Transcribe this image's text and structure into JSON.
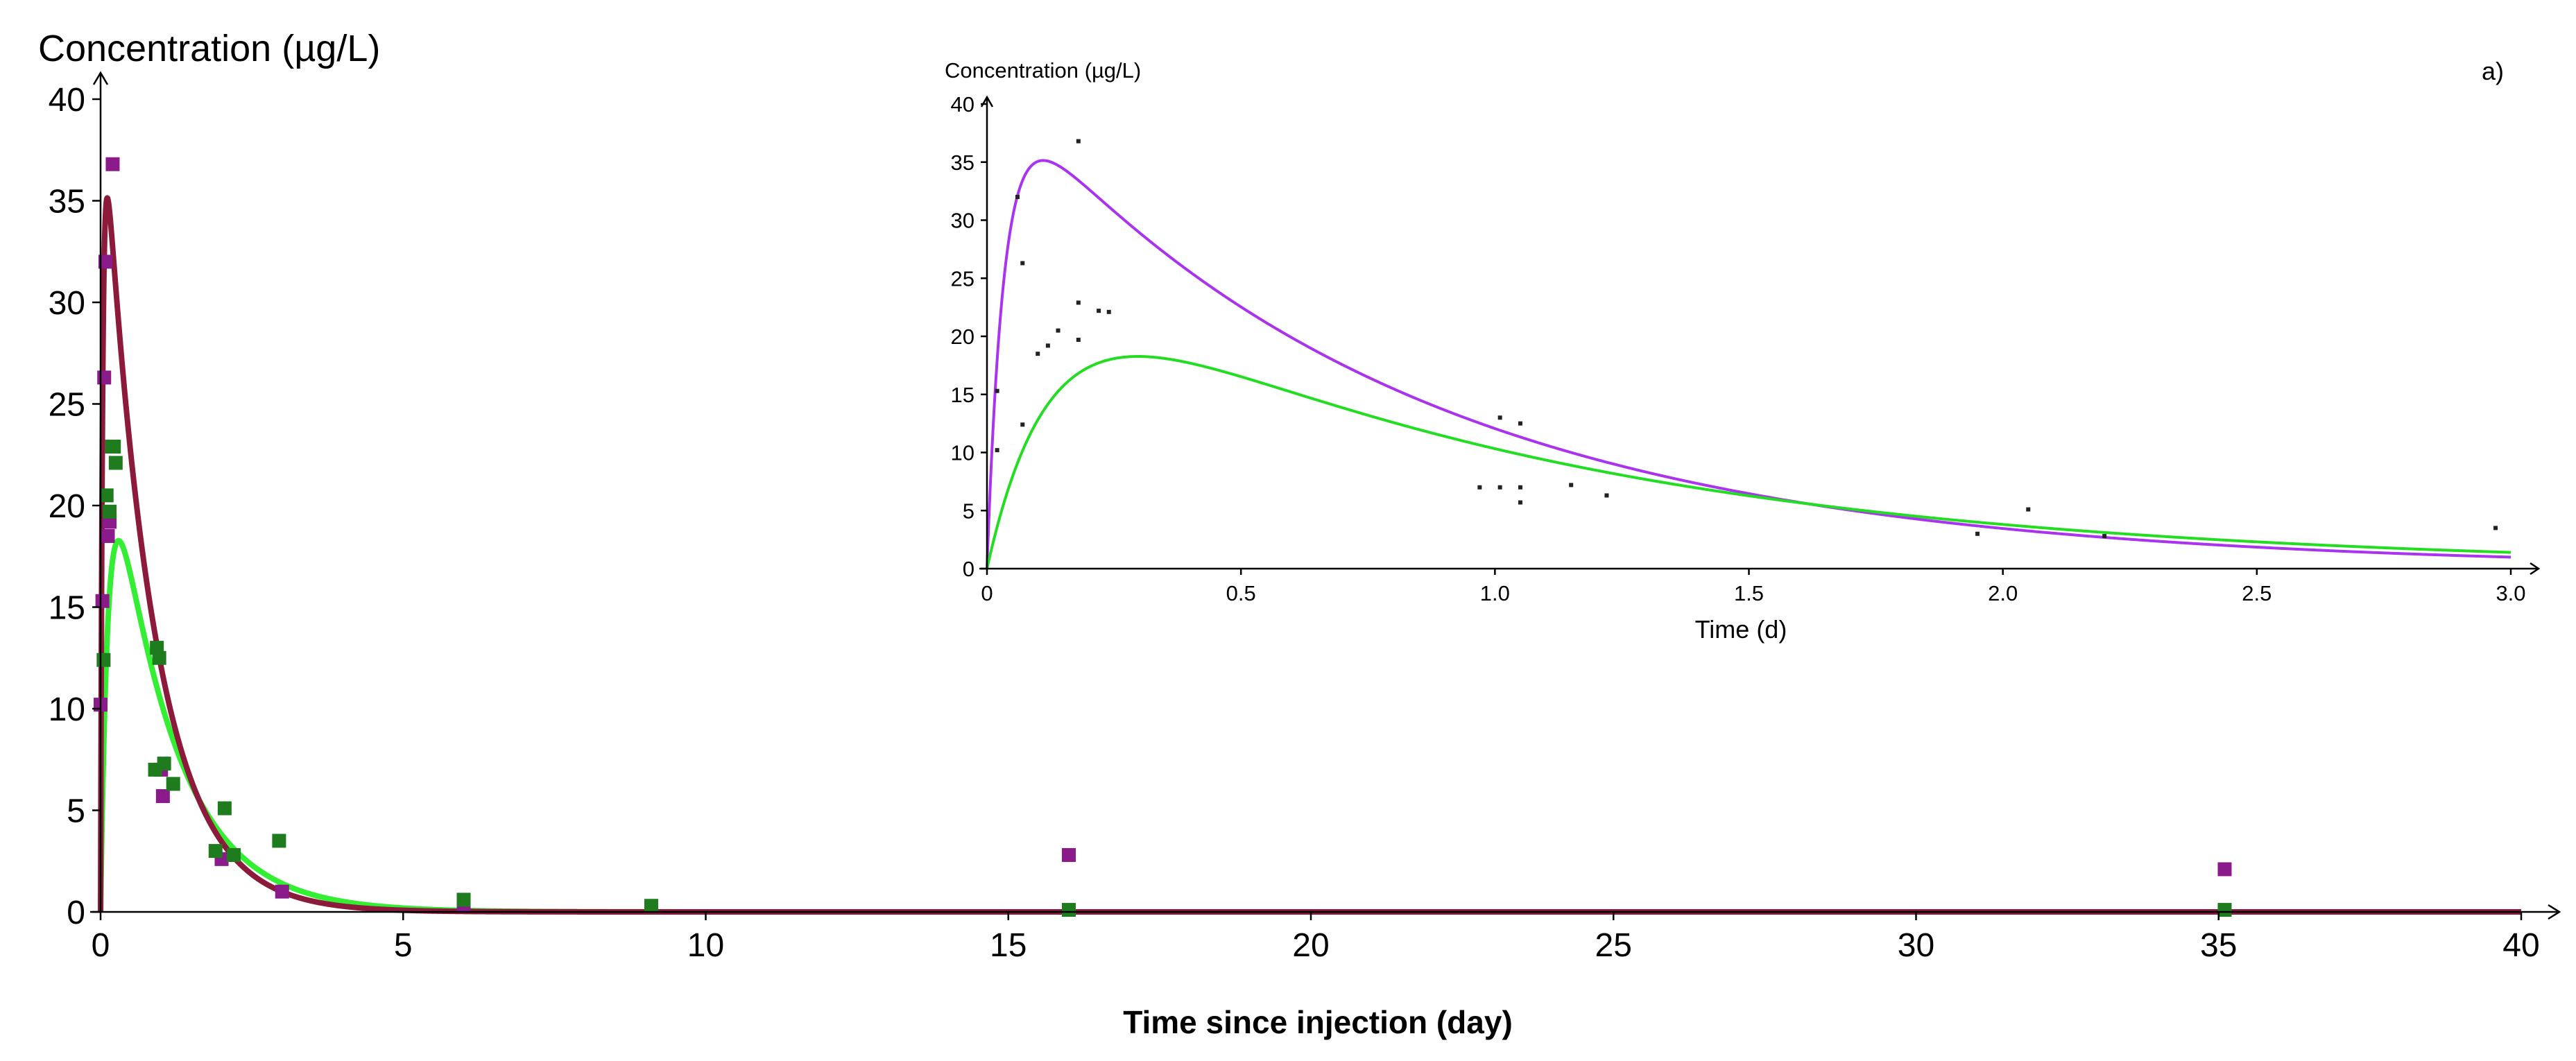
{
  "chart_data": [
    {
      "type": "scatter",
      "role": "main",
      "ylabel": "Concentration (µg/L)",
      "xlabel": "Time since injection (day)",
      "xlim": [
        0,
        40
      ],
      "ylim": [
        0,
        40
      ],
      "x_ticks": [
        0,
        5,
        10,
        15,
        20,
        25,
        30,
        35,
        40
      ],
      "x_tick_labels": [
        "0",
        "5",
        "10",
        "15",
        "20",
        "25",
        "30",
        "35",
        "40"
      ],
      "y_ticks": [
        0,
        5,
        10,
        15,
        20,
        25,
        30,
        35,
        40
      ],
      "y_tick_labels": [
        "0",
        "5",
        "10",
        "15",
        "20",
        "25",
        "30",
        "35",
        "40"
      ],
      "series": [
        {
          "name": "purple",
          "color": "#8b1a8b",
          "points": [
            [
              0.0,
              10.2
            ],
            [
              0.03,
              15.3
            ],
            [
              0.06,
              26.3
            ],
            [
              0.08,
              32.0
            ],
            [
              0.2,
              36.8
            ],
            [
              0.12,
              18.5
            ],
            [
              0.15,
              19.2
            ],
            [
              1.0,
              7.0
            ],
            [
              1.03,
              5.7
            ],
            [
              2.0,
              2.6
            ],
            [
              3.0,
              1.0
            ],
            [
              6.0,
              0.3
            ],
            [
              16.0,
              2.8
            ],
            [
              35.1,
              2.1
            ]
          ]
        },
        {
          "name": "green",
          "color": "#1e7b1e",
          "points": [
            [
              0.05,
              12.4
            ],
            [
              0.1,
              20.5
            ],
            [
              0.15,
              19.7
            ],
            [
              0.19,
              22.9
            ],
            [
              0.22,
              22.9
            ],
            [
              0.25,
              22.1
            ],
            [
              0.9,
              7.0
            ],
            [
              0.93,
              13.0
            ],
            [
              0.97,
              12.5
            ],
            [
              1.05,
              7.3
            ],
            [
              1.2,
              6.3
            ],
            [
              1.9,
              3.0
            ],
            [
              2.05,
              5.1
            ],
            [
              2.2,
              2.8
            ],
            [
              2.95,
              3.5
            ],
            [
              6.0,
              0.6
            ],
            [
              9.1,
              0.3
            ],
            [
              16.0,
              0.1
            ],
            [
              35.1,
              0.1
            ]
          ]
        }
      ],
      "curves": [
        {
          "name": "purple-fit",
          "color": "#8b1a3b",
          "ka": 30,
          "ke": 1.25,
          "A": 42.1
        },
        {
          "name": "green-fit",
          "color": "#33ee33",
          "ka": 8,
          "ke": 1.0,
          "A": 28.1
        }
      ]
    },
    {
      "type": "scatter",
      "role": "inset",
      "panel_label": "a)",
      "ylabel": "Concentration (µg/L)",
      "xlabel": "Time (d)",
      "xlim": [
        0,
        3
      ],
      "ylim": [
        0,
        40
      ],
      "x_ticks": [
        0,
        0.5,
        1.0,
        1.5,
        2.0,
        2.5,
        3.0
      ],
      "x_tick_labels": [
        "0",
        "0.5",
        "1.0",
        "1.5",
        "2.0",
        "2.5",
        "3.0"
      ],
      "y_ticks": [
        0,
        5,
        10,
        15,
        20,
        25,
        30,
        35,
        40
      ],
      "y_tick_labels": [
        "0",
        "5",
        "10",
        "15",
        "20",
        "25",
        "30",
        "35",
        "40"
      ],
      "points": [
        [
          0.02,
          15.3
        ],
        [
          0.02,
          10.2
        ],
        [
          0.06,
          32.0
        ],
        [
          0.07,
          26.3
        ],
        [
          0.07,
          12.4
        ],
        [
          0.18,
          36.8
        ],
        [
          0.1,
          18.5
        ],
        [
          0.12,
          19.2
        ],
        [
          0.14,
          20.5
        ],
        [
          0.18,
          22.9
        ],
        [
          0.18,
          19.7
        ],
        [
          0.22,
          22.2
        ],
        [
          0.24,
          22.1
        ],
        [
          0.97,
          7.0
        ],
        [
          1.01,
          13.0
        ],
        [
          1.01,
          7.0
        ],
        [
          1.05,
          12.5
        ],
        [
          1.05,
          7.0
        ],
        [
          1.05,
          5.7
        ],
        [
          1.15,
          7.2
        ],
        [
          1.22,
          6.3
        ],
        [
          2.05,
          5.1
        ],
        [
          1.95,
          3.0
        ],
        [
          2.2,
          2.8
        ],
        [
          2.97,
          3.5
        ]
      ],
      "curves": [
        {
          "name": "purple-fit",
          "color": "#aa33ee",
          "ka": 30,
          "ke": 1.25,
          "A": 42.1
        },
        {
          "name": "green-fit",
          "color": "#22dd22",
          "ka": 8,
          "ke": 1.0,
          "A": 28.1
        }
      ]
    }
  ]
}
